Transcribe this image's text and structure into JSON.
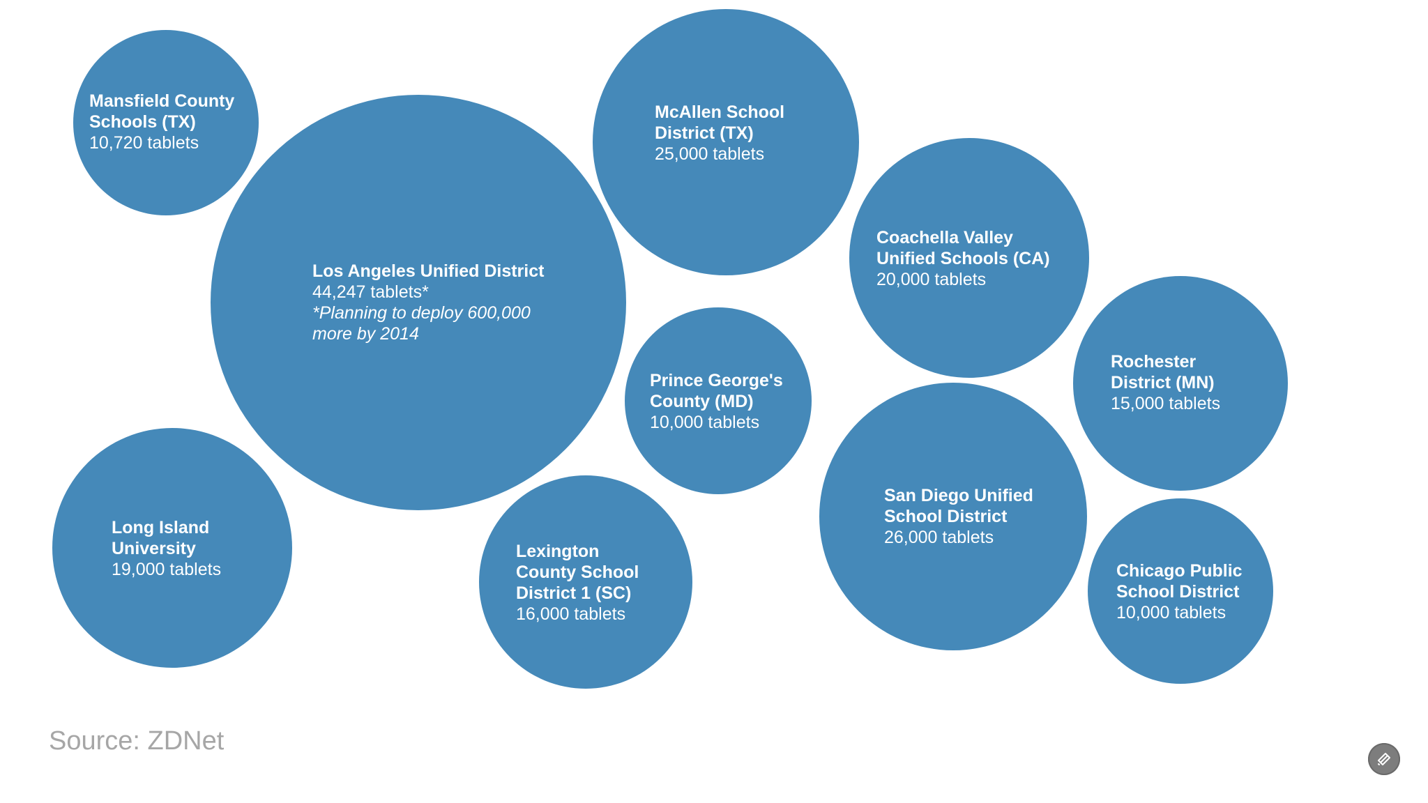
{
  "chart_data": {
    "type": "bubble",
    "title": "",
    "unit": "tablets",
    "color": "#4589b9",
    "points": [
      {
        "name": "Mansfield County\nSchools (TX)",
        "value": 10720,
        "value_label": "10,720 tablets"
      },
      {
        "name": "Los Angeles Unified District",
        "value": 44247,
        "value_label": "44,247 tablets*",
        "note": "*Planning to deploy 600,000\nmore by 2014"
      },
      {
        "name": "McAllen School\nDistrict (TX)",
        "value": 25000,
        "value_label": "25,000 tablets"
      },
      {
        "name": "Coachella Valley\nUnified Schools (CA)",
        "value": 20000,
        "value_label": "20,000 tablets"
      },
      {
        "name": "Prince George's\nCounty (MD)",
        "value": 10000,
        "value_label": "10,000 tablets"
      },
      {
        "name": "Rochester\nDistrict (MN)",
        "value": 15000,
        "value_label": "15,000 tablets"
      },
      {
        "name": "Long Island\nUniversity",
        "value": 19000,
        "value_label": "19,000 tablets"
      },
      {
        "name": "Lexington\nCounty School\nDistrict 1 (SC)",
        "value": 16000,
        "value_label": "16,000 tablets"
      },
      {
        "name": "San Diego Unified\nSchool District",
        "value": 26000,
        "value_label": "26,000 tablets"
      },
      {
        "name": "Chicago Public\nSchool District",
        "value": 10000,
        "value_label": "10,000 tablets"
      }
    ],
    "source": "Source: ZDNet"
  },
  "widget": {
    "icon": "layers-icon"
  }
}
